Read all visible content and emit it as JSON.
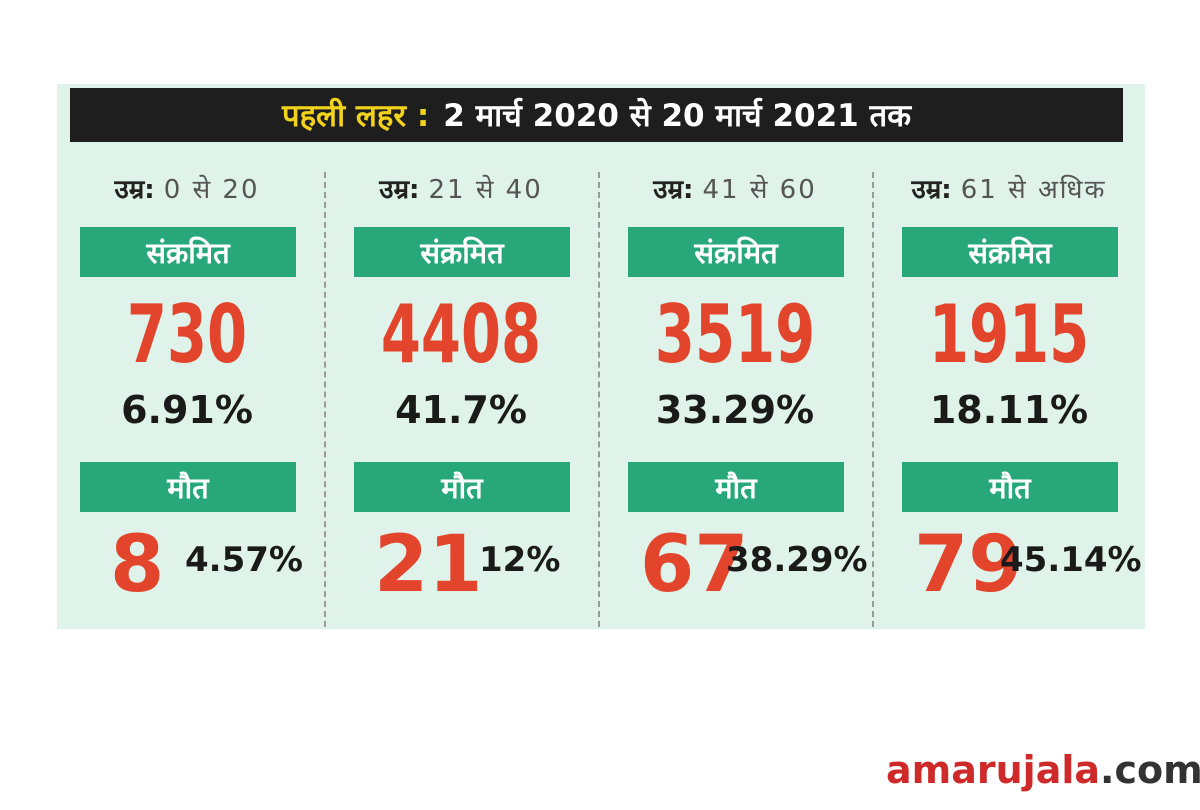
{
  "header": {
    "highlight": "पहली लहर :",
    "rest": "2 मार्च 2020 से 20 मार्च 2021 तक"
  },
  "labels": {
    "age_prefix": "उम्र:",
    "infected": "संक्रमित",
    "deaths": "मौत"
  },
  "groups": [
    {
      "age": "0 से 20",
      "infected": "730",
      "infected_pct": "6.91%",
      "deaths": "8",
      "deaths_pct": "4.57%"
    },
    {
      "age": "21 से 40",
      "infected": "4408",
      "infected_pct": "41.7%",
      "deaths": "21",
      "deaths_pct": "12%"
    },
    {
      "age": "41 से 60",
      "infected": "3519",
      "infected_pct": "33.29%",
      "deaths": "67",
      "deaths_pct": "38.29%"
    },
    {
      "age": "61 से अधिक",
      "infected": "1915",
      "infected_pct": "18.11%",
      "deaths": "79",
      "deaths_pct": "45.14%"
    }
  ],
  "chart_data": {
    "type": "table",
    "title": "पहली लहर : 2 मार्च 2020 से 20 मार्च 2021 तक",
    "columns": [
      "उम्र",
      "संक्रमित",
      "संक्रमित %",
      "मौत",
      "मौत %"
    ],
    "rows": [
      [
        "0 से 20",
        730,
        6.91,
        8,
        4.57
      ],
      [
        "21 से 40",
        4408,
        41.7,
        21,
        12
      ],
      [
        "41 से 60",
        3519,
        33.29,
        67,
        38.29
      ],
      [
        "61 से अधिक",
        1915,
        18.11,
        79,
        45.14
      ]
    ]
  },
  "brand": {
    "name_red": "amarujala",
    "name_dark": ".com"
  },
  "colors": {
    "accent_green": "#28a87a",
    "number_red": "#e3452c",
    "banner_yellow": "#f2d21a",
    "banner_bg": "#1e1e1e",
    "panel_bg": "#dff3ea"
  }
}
